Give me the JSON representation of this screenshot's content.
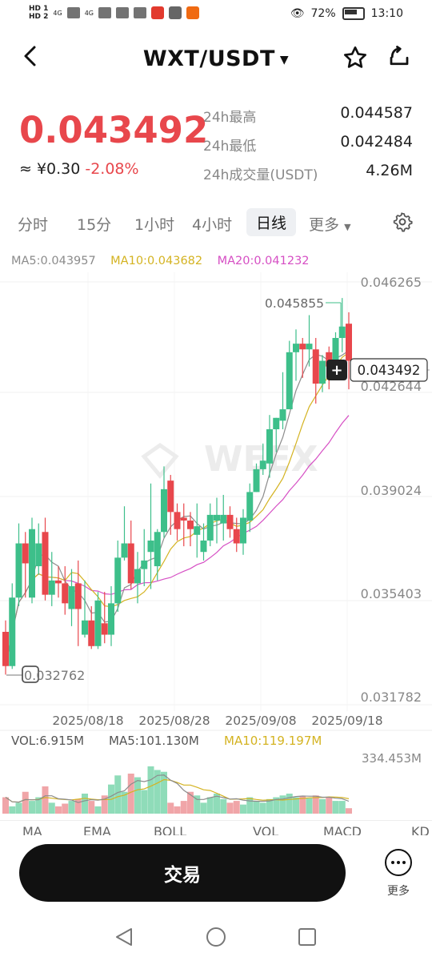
{
  "status_bar": {
    "hd1": "HD 1",
    "hd2": "HD 2",
    "net1": "4G",
    "net2": "4G",
    "battery": "72%",
    "time": "13:10"
  },
  "header": {
    "title": "WXT/USDT",
    "icons": [
      "back-icon",
      "caret-down-icon",
      "star-icon",
      "share-icon"
    ]
  },
  "ticker": {
    "price": "0.043492",
    "cny": "≈ ¥0.30",
    "change": "-2.08%",
    "stats": [
      {
        "label": "24h最高",
        "value": "0.044587"
      },
      {
        "label": "24h最低",
        "value": "0.042484"
      },
      {
        "label": "24h成交量(USDT)",
        "value": "4.26M"
      }
    ]
  },
  "periods": [
    {
      "label": "分时",
      "active": false
    },
    {
      "label": "15分",
      "active": false
    },
    {
      "label": "1小时",
      "active": false
    },
    {
      "label": "4小时",
      "active": false
    },
    {
      "label": "日线",
      "active": true
    },
    {
      "label": "更多",
      "active": false
    }
  ],
  "ma": {
    "ma5": "MA5:0.043957",
    "ma10": "MA10:0.043682",
    "ma20": "MA20:0.041232",
    "colors": {
      "ma5": "#8c8c8c",
      "ma10": "#d4b321",
      "ma20": "#d64fc4"
    }
  },
  "chart_data": {
    "type": "candlestick",
    "y_axis_labels": [
      "0.046265",
      "0.042644",
      "0.039024",
      "0.035403",
      "0.031782"
    ],
    "ylim": [
      0.031782,
      0.046265
    ],
    "x_axis_labels": [
      "2025/08/18",
      "2025/08/28",
      "2025/09/08",
      "2025/09/18"
    ],
    "high_label": "0.045855",
    "low_label": "0.032762",
    "last_price_label": "0.043492",
    "watermark": "WEEX",
    "colors": {
      "up": "#3dbf8a",
      "down": "#e8474c"
    },
    "candles": [
      [
        0.034,
        0.0328,
        0.0344,
        0.0325
      ],
      [
        0.0328,
        0.0352,
        0.0357,
        0.0327
      ],
      [
        0.0352,
        0.0371,
        0.0378,
        0.0349
      ],
      [
        0.0371,
        0.0364,
        0.0375,
        0.0352
      ],
      [
        0.0352,
        0.0376,
        0.038,
        0.035
      ],
      [
        0.0363,
        0.0371,
        0.0378,
        0.036
      ],
      [
        0.0375,
        0.0353,
        0.038,
        0.0351
      ],
      [
        0.0353,
        0.0358,
        0.0368,
        0.0349
      ],
      [
        0.0358,
        0.0357,
        0.0363,
        0.0352
      ],
      [
        0.0357,
        0.035,
        0.0363,
        0.0346
      ],
      [
        0.0348,
        0.0356,
        0.0362,
        0.0342
      ],
      [
        0.0357,
        0.0348,
        0.0365,
        0.0335
      ],
      [
        0.0339,
        0.0344,
        0.0358,
        0.0338
      ],
      [
        0.0344,
        0.0335,
        0.0349,
        0.0334
      ],
      [
        0.0335,
        0.0351,
        0.0354,
        0.0334
      ],
      [
        0.0343,
        0.0339,
        0.0354,
        0.0336
      ],
      [
        0.0339,
        0.035,
        0.0356,
        0.0335
      ],
      [
        0.035,
        0.0366,
        0.0372,
        0.0347
      ],
      [
        0.0366,
        0.0371,
        0.0384,
        0.0365
      ],
      [
        0.0371,
        0.0357,
        0.0379,
        0.0355
      ],
      [
        0.0357,
        0.0362,
        0.0368,
        0.035
      ],
      [
        0.0362,
        0.0365,
        0.0376,
        0.0356
      ],
      [
        0.0368,
        0.0372,
        0.0392,
        0.0355
      ],
      [
        0.0363,
        0.0375,
        0.0376,
        0.0358
      ],
      [
        0.0375,
        0.039,
        0.0398,
        0.0373
      ],
      [
        0.0393,
        0.0382,
        0.0395,
        0.0374
      ],
      [
        0.0382,
        0.0376,
        0.0385,
        0.0372
      ],
      [
        0.038,
        0.0379,
        0.0385,
        0.037
      ],
      [
        0.0379,
        0.0376,
        0.0382,
        0.037
      ],
      [
        0.0374,
        0.0377,
        0.0385,
        0.0366
      ],
      [
        0.0368,
        0.0372,
        0.0378,
        0.0365
      ],
      [
        0.0372,
        0.0381,
        0.0385,
        0.037
      ],
      [
        0.0379,
        0.0381,
        0.0387,
        0.0371
      ],
      [
        0.0378,
        0.0381,
        0.0388,
        0.0372
      ],
      [
        0.0381,
        0.0376,
        0.0384,
        0.0373
      ],
      [
        0.0376,
        0.0371,
        0.038,
        0.0368
      ],
      [
        0.0371,
        0.038,
        0.0383,
        0.0367
      ],
      [
        0.0379,
        0.0389,
        0.0392,
        0.0375
      ],
      [
        0.0389,
        0.0397,
        0.0399,
        0.0389
      ],
      [
        0.0397,
        0.04,
        0.0406,
        0.0395
      ],
      [
        0.0399,
        0.0411,
        0.0416,
        0.0394
      ],
      [
        0.0411,
        0.0415,
        0.0415,
        0.0403
      ],
      [
        0.0414,
        0.0418,
        0.0431,
        0.0411
      ],
      [
        0.0418,
        0.0438,
        0.0442,
        0.0418
      ],
      [
        0.0438,
        0.0441,
        0.0446,
        0.0428
      ],
      [
        0.0441,
        0.0439,
        0.0443,
        0.0429
      ],
      [
        0.0439,
        0.0441,
        0.0451,
        0.0433
      ],
      [
        0.0439,
        0.0427,
        0.0443,
        0.042
      ],
      [
        0.0427,
        0.0435,
        0.0437,
        0.0424
      ],
      [
        0.0438,
        0.0433,
        0.044,
        0.0425
      ],
      [
        0.0433,
        0.0443,
        0.0445,
        0.0431
      ],
      [
        0.0443,
        0.0447,
        0.0457,
        0.0438
      ],
      [
        0.0448,
        0.0435,
        0.0452,
        0.0425
      ]
    ],
    "volume": {
      "labels": {
        "vol": "VOL:6.915M",
        "ma5": "MA5:101.130M",
        "ma10": "MA10:119.197M",
        "max": "334.453M"
      },
      "max": 334.453,
      "values": [
        90,
        40,
        60,
        120,
        70,
        90,
        150,
        60,
        40,
        55,
        70,
        80,
        110,
        70,
        40,
        100,
        160,
        210,
        120,
        220,
        200,
        130,
        260,
        240,
        230,
        60,
        40,
        70,
        120,
        100,
        60,
        90,
        110,
        80,
        60,
        70,
        50,
        90,
        70,
        60,
        80,
        90,
        100,
        110,
        90,
        95,
        85,
        100,
        80,
        90,
        70,
        70,
        30
      ]
    }
  },
  "indicator_tabs": [
    "MA",
    "EMA",
    "BOLL",
    "VOL",
    "MACD",
    "KD"
  ],
  "bottom": {
    "trade": "交易",
    "more": "更多"
  }
}
